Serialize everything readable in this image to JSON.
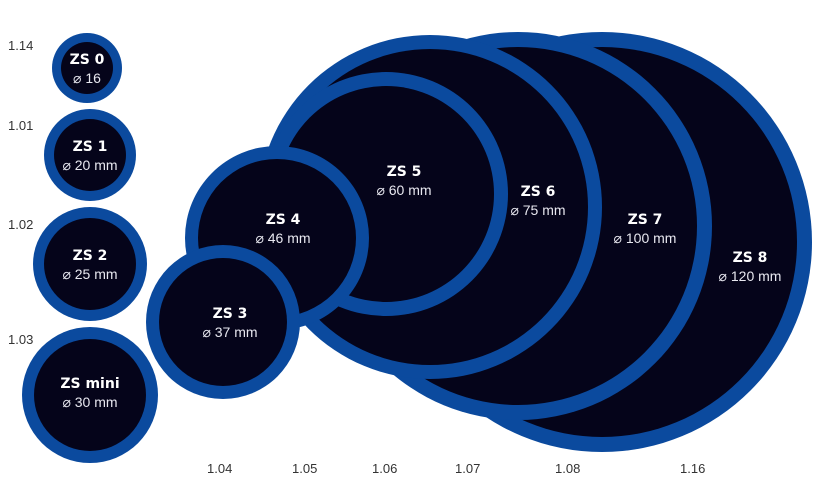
{
  "colors": {
    "ring": "#0b4a9e",
    "patch": "#05041a",
    "text": "#ffffff",
    "code_text": "#333333"
  },
  "patches": [
    {
      "name": "ZS 0",
      "diameter": "⌀ 16",
      "code": "1.14"
    },
    {
      "name": "ZS 1",
      "diameter": "⌀ 20 mm",
      "code": "1.01"
    },
    {
      "name": "ZS 2",
      "diameter": "⌀ 25 mm",
      "code": "1.02"
    },
    {
      "name": "ZS mini",
      "diameter": "⌀ 30 mm",
      "code": "1.03"
    },
    {
      "name": "ZS 3",
      "diameter": "⌀ 37 mm",
      "code": "1.04"
    },
    {
      "name": "ZS 4",
      "diameter": "⌀ 46 mm",
      "code": "1.05"
    },
    {
      "name": "ZS 5",
      "diameter": "⌀ 60 mm",
      "code": "1.06"
    },
    {
      "name": "ZS 6",
      "diameter": "⌀ 75 mm",
      "code": "1.07"
    },
    {
      "name": "ZS 7",
      "diameter": "⌀ 100 mm",
      "code": "1.08"
    },
    {
      "name": "ZS 8",
      "diameter": "⌀ 120 mm",
      "code": "1.16"
    }
  ]
}
